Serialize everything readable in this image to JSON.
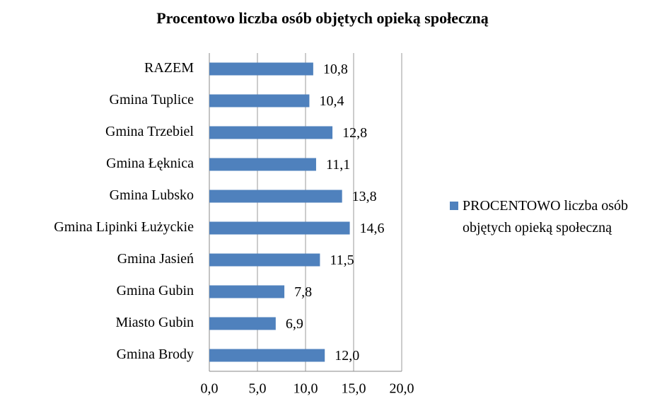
{
  "chart_data": {
    "type": "bar",
    "orientation": "horizontal",
    "title": "Procentowo liczba osób objętych opieką społeczną",
    "categories": [
      "RAZEM",
      "Gmina Tuplice",
      "Gmina Trzebiel",
      "Gmina Łęknica",
      "Gmina Lubsko",
      "Gmina Lipinki Łużyckie",
      "Gmina Jasień",
      "Gmina Gubin",
      "Miasto Gubin",
      "Gmina Brody"
    ],
    "series": [
      {
        "name": "PROCENTOWO liczba osób objętych opieką społeczną",
        "color": "#4f81bd",
        "values": [
          10.8,
          10.4,
          12.8,
          11.1,
          13.8,
          14.6,
          11.5,
          7.8,
          6.9,
          12.0
        ],
        "value_labels": [
          "10,8",
          "10,4",
          "12,8",
          "11,1",
          "13,8",
          "14,6",
          "11,5",
          "7,8",
          "6,9",
          "12,0"
        ]
      }
    ],
    "xlim": [
      0,
      20
    ],
    "xticks": [
      {
        "value": 0,
        "label": "0,0"
      },
      {
        "value": 5,
        "label": "5,0"
      },
      {
        "value": 10,
        "label": "10,0"
      },
      {
        "value": 15,
        "label": "15,0"
      },
      {
        "value": 20,
        "label": "20,0"
      }
    ],
    "grid": true,
    "legend": "right"
  }
}
